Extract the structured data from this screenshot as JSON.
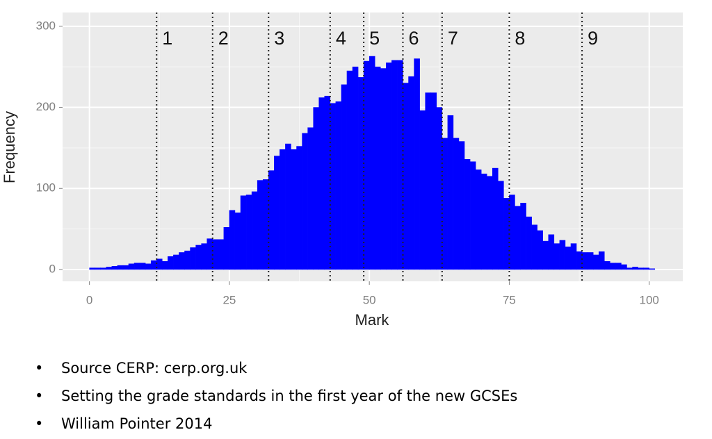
{
  "chart_data": {
    "type": "histogram",
    "xlabel": "Mark",
    "ylabel": "Frequency",
    "color": "#0000ff",
    "bins": [
      0,
      1,
      2,
      3,
      4,
      5,
      6,
      7,
      8,
      9,
      10,
      11,
      12,
      13,
      14,
      15,
      16,
      17,
      18,
      19,
      20,
      21,
      22,
      23,
      24,
      25,
      26,
      27,
      28,
      29,
      30,
      31,
      32,
      33,
      34,
      35,
      36,
      37,
      38,
      39,
      40,
      41,
      42,
      43,
      44,
      45,
      46,
      47,
      48,
      49,
      50,
      51,
      52,
      53,
      54,
      55,
      56,
      57,
      58,
      59,
      60,
      61,
      62,
      63,
      64,
      65,
      66,
      67,
      68,
      69,
      70,
      71,
      72,
      73,
      74,
      75,
      76,
      77,
      78,
      79,
      80,
      81,
      82,
      83,
      84,
      85,
      86,
      87,
      88,
      89,
      90,
      91,
      92,
      93,
      94,
      95,
      96,
      97,
      98,
      99,
      100,
      101
    ],
    "values": [
      2,
      2,
      2,
      3,
      4,
      5,
      5,
      7,
      8,
      8,
      7,
      11,
      13,
      10,
      16,
      18,
      21,
      23,
      27,
      30,
      32,
      38,
      37,
      37,
      52,
      73,
      70,
      91,
      92,
      96,
      110,
      111,
      122,
      140,
      148,
      155,
      148,
      152,
      168,
      175,
      200,
      212,
      214,
      205,
      207,
      228,
      245,
      250,
      237,
      257,
      263,
      250,
      248,
      255,
      258,
      258,
      230,
      238,
      260,
      196,
      218,
      218,
      200,
      162,
      190,
      162,
      158,
      136,
      133,
      123,
      118,
      115,
      125,
      109,
      88,
      92,
      78,
      82,
      65,
      55,
      48,
      35,
      43,
      32,
      36,
      28,
      32,
      22,
      21,
      21,
      18,
      22,
      10,
      8,
      8,
      6,
      2,
      3,
      2,
      2,
      1
    ],
    "xlim": [
      -4.8,
      106
    ],
    "ylim": [
      -14.6,
      317
    ],
    "xticks": [
      0,
      25,
      50,
      75,
      100
    ],
    "yticks": [
      0,
      100,
      200,
      300
    ],
    "grid": true,
    "annotations": [
      {
        "x": 12,
        "label": "1"
      },
      {
        "x": 22,
        "label": "2"
      },
      {
        "x": 32,
        "label": "3"
      },
      {
        "x": 43,
        "label": "4"
      },
      {
        "x": 49,
        "label": "5"
      },
      {
        "x": 56,
        "label": "6"
      },
      {
        "x": 63,
        "label": "7"
      },
      {
        "x": 75,
        "label": "8"
      },
      {
        "x": 88,
        "label": "9"
      }
    ]
  },
  "notes": {
    "bullets": [
      "Source CERP: cerp.org.uk",
      "Setting the grade standards in the first year of the new GCSEs",
      "William Pointer 2014"
    ]
  }
}
